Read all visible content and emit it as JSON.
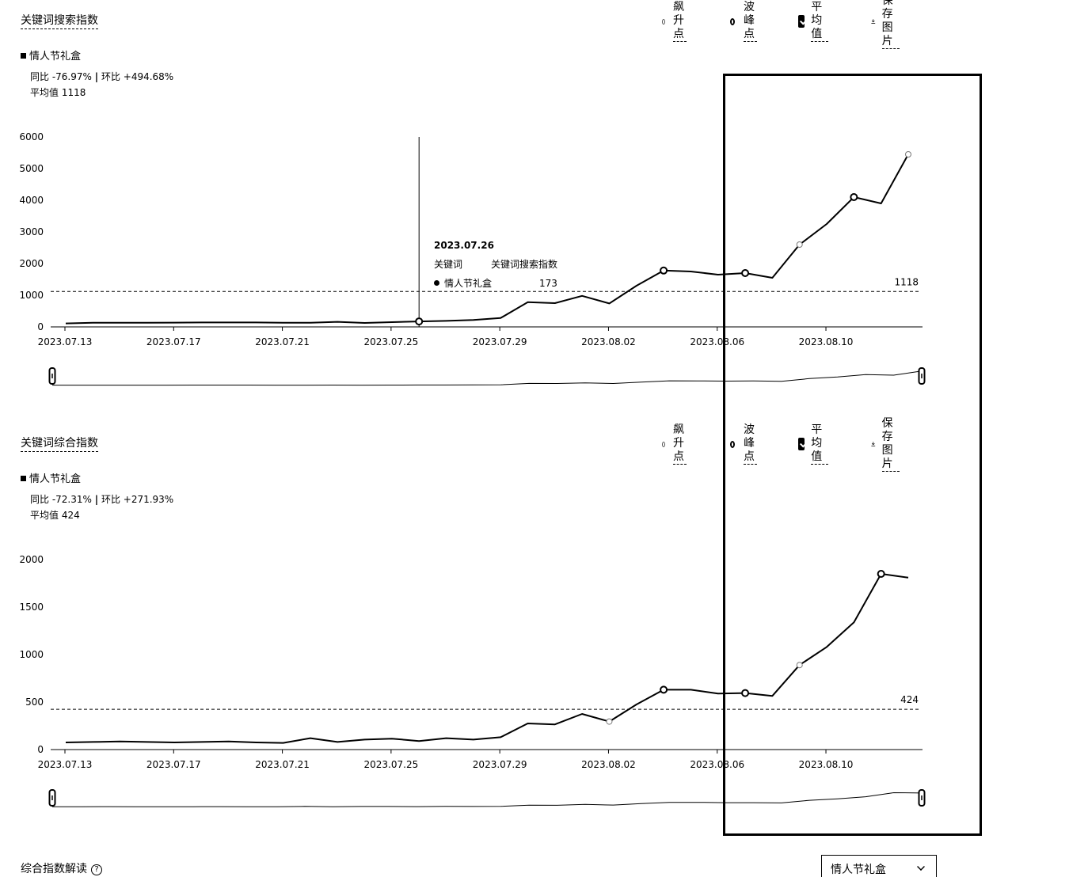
{
  "panels": [
    {
      "title": "关键词搜索指数",
      "toolbar": {
        "surge": "飙升点",
        "peak": "波峰点",
        "avg": "平均值",
        "save": "保存图片"
      },
      "legend": "情人节礼盒",
      "stats": {
        "yoy": "同比 -76.97%",
        "sep": "|",
        "mom": "环比 +494.68%",
        "avg": "平均值 1118"
      },
      "tooltip": {
        "date": "2023.07.26",
        "col1": "关键词",
        "col2": "关键词搜索指数",
        "name": "情人节礼盒",
        "value": "173"
      }
    },
    {
      "title": "关键词综合指数",
      "toolbar": {
        "surge": "飙升点",
        "peak": "波峰点",
        "avg": "平均值",
        "save": "保存图片"
      },
      "legend": "情人节礼盒",
      "stats": {
        "yoy": "同比 -72.31%",
        "sep": "|",
        "mom": "环比 +271.93%",
        "avg": "平均值 424"
      }
    }
  ],
  "bottom": {
    "title": "综合指数解读",
    "help": "?",
    "select_value": "情人节礼盒"
  },
  "chart_data": [
    {
      "type": "line",
      "x": [
        "2023.07.13",
        "2023.07.14",
        "2023.07.15",
        "2023.07.16",
        "2023.07.17",
        "2023.07.18",
        "2023.07.19",
        "2023.07.20",
        "2023.07.21",
        "2023.07.22",
        "2023.07.23",
        "2023.07.24",
        "2023.07.25",
        "2023.07.26",
        "2023.07.27",
        "2023.07.28",
        "2023.07.29",
        "2023.07.30",
        "2023.07.31",
        "2023.08.01",
        "2023.08.02",
        "2023.08.03",
        "2023.08.04",
        "2023.08.05",
        "2023.08.06",
        "2023.08.07",
        "2023.08.08",
        "2023.08.09",
        "2023.08.10",
        "2023.08.11",
        "2023.08.12",
        "2023.08.13"
      ],
      "series": [
        {
          "name": "情人节礼盒",
          "values": [
            110,
            130,
            130,
            130,
            135,
            140,
            140,
            140,
            130,
            130,
            160,
            125,
            150,
            173,
            190,
            220,
            280,
            780,
            750,
            980,
            740,
            1300,
            1780,
            1750,
            1650,
            1700,
            1550,
            2600,
            3250,
            4100,
            3900,
            5450
          ]
        }
      ],
      "x_ticks": [
        "2023.07.13",
        "2023.07.17",
        "2023.07.21",
        "2023.07.25",
        "2023.07.29",
        "2023.08.02",
        "2023.08.06",
        "2023.08.10"
      ],
      "y_ticks": [
        0,
        1000,
        2000,
        3000,
        4000,
        5000,
        6000
      ],
      "ylim": [
        0,
        6000
      ],
      "average": 1118,
      "average_label": "1118",
      "surge_points": [
        "2023.08.09",
        "2023.08.13"
      ],
      "peak_points": [
        "2023.08.04",
        "2023.08.07",
        "2023.08.11"
      ],
      "hover_point": "2023.07.26"
    },
    {
      "type": "line",
      "x": [
        "2023.07.13",
        "2023.07.14",
        "2023.07.15",
        "2023.07.16",
        "2023.07.17",
        "2023.07.18",
        "2023.07.19",
        "2023.07.20",
        "2023.07.21",
        "2023.07.22",
        "2023.07.23",
        "2023.07.24",
        "2023.07.25",
        "2023.07.26",
        "2023.07.27",
        "2023.07.28",
        "2023.07.29",
        "2023.07.30",
        "2023.07.31",
        "2023.08.01",
        "2023.08.02",
        "2023.08.03",
        "2023.08.04",
        "2023.08.05",
        "2023.08.06",
        "2023.08.07",
        "2023.08.08",
        "2023.08.09",
        "2023.08.10",
        "2023.08.11",
        "2023.08.12",
        "2023.08.13"
      ],
      "series": [
        {
          "name": "情人节礼盒",
          "values": [
            75,
            80,
            85,
            80,
            75,
            80,
            85,
            75,
            70,
            120,
            80,
            105,
            115,
            90,
            120,
            105,
            130,
            275,
            265,
            375,
            295,
            475,
            630,
            630,
            590,
            595,
            565,
            890,
            1080,
            1340,
            1850,
            1810
          ]
        }
      ],
      "x_ticks": [
        "2023.07.13",
        "2023.07.17",
        "2023.07.21",
        "2023.07.25",
        "2023.07.29",
        "2023.08.02",
        "2023.08.06",
        "2023.08.10"
      ],
      "y_ticks": [
        0,
        500,
        1000,
        1500,
        2000
      ],
      "ylim": [
        0,
        2000
      ],
      "average": 424,
      "average_label": "424",
      "surge_points": [
        "2023.08.02",
        "2023.08.09"
      ],
      "peak_points": [
        "2023.08.04",
        "2023.08.07",
        "2023.08.12"
      ]
    }
  ]
}
